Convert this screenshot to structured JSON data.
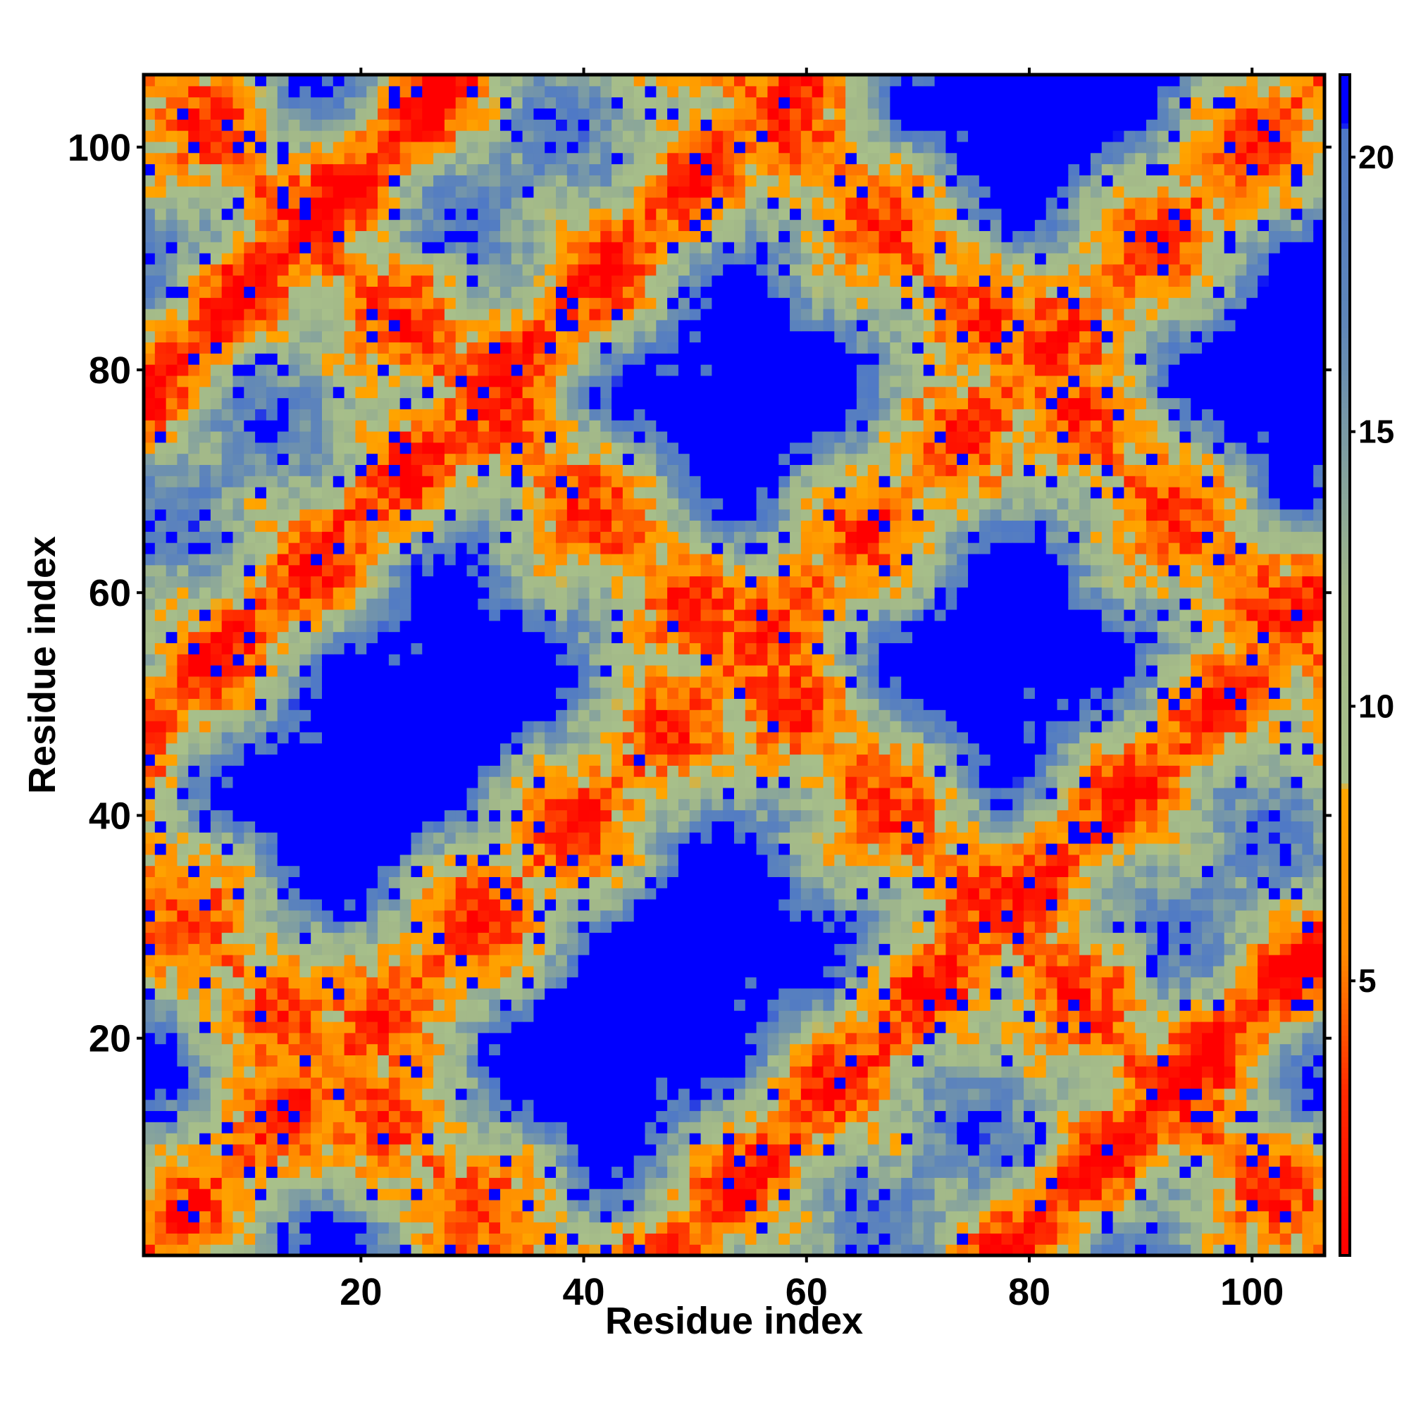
{
  "chart_data": {
    "type": "heatmap",
    "title": "",
    "xlabel": "Residue index",
    "ylabel": "Residue index",
    "xlim": [
      1,
      106
    ],
    "ylim": [
      1,
      106
    ],
    "x_ticks": [
      20,
      40,
      60,
      80,
      100
    ],
    "y_ticks": [
      20,
      40,
      60,
      80,
      100
    ],
    "x_tick_labels": [
      "20",
      "40",
      "60",
      "80",
      "100"
    ],
    "y_tick_labels": [
      "20",
      "40",
      "60",
      "80",
      "100"
    ],
    "colorbar": {
      "ticks": [
        5,
        10,
        15,
        20
      ],
      "tick_labels": [
        "5",
        "10",
        "15",
        "20"
      ],
      "range": [
        0,
        21.5
      ],
      "stops": [
        {
          "value": 0,
          "color": "#ff0000"
        },
        {
          "value": 3,
          "color": "#ff2a00"
        },
        {
          "value": 5.5,
          "color": "#ff8a00"
        },
        {
          "value": 8.5,
          "color": "#ffa500"
        },
        {
          "value": 8.6,
          "color": "#a8c08a"
        },
        {
          "value": 12,
          "color": "#a2b889"
        },
        {
          "value": 17,
          "color": "#5f86b9"
        },
        {
          "value": 20.5,
          "color": "#4f79c6"
        },
        {
          "value": 20.6,
          "color": "#0000ff"
        },
        {
          "value": 21.5,
          "color": "#0000ff"
        }
      ]
    },
    "matrix_size": 106,
    "grid": false,
    "description": "Symmetric residue-residue contact/distance map; main diagonal values near 0 (red), off-diagonal antiparallel bands of low values, background above cutoff (blue)."
  }
}
